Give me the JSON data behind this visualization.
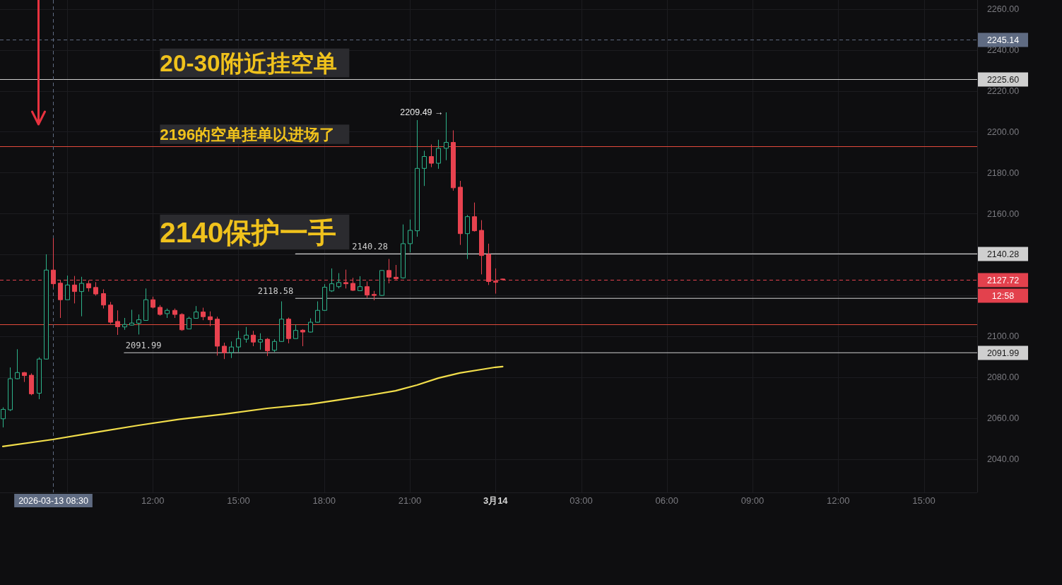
{
  "chart_data": {
    "type": "candlestick",
    "x": [
      "2026-03-13T06:45",
      "2026-03-13T07:00",
      "2026-03-13T07:15",
      "2026-03-13T07:30",
      "2026-03-13T07:45",
      "2026-03-13T08:00",
      "2026-03-13T08:15",
      "2026-03-13T08:30",
      "2026-03-13T08:45",
      "2026-03-13T09:00",
      "2026-03-13T09:15",
      "2026-03-13T09:30",
      "2026-03-13T09:45",
      "2026-03-13T10:00",
      "2026-03-13T10:15",
      "2026-03-13T10:30",
      "2026-03-13T10:45",
      "2026-03-13T11:00",
      "2026-03-13T11:15",
      "2026-03-13T11:30",
      "2026-03-13T11:45",
      "2026-03-13T12:00",
      "2026-03-13T12:15",
      "2026-03-13T12:30",
      "2026-03-13T12:45",
      "2026-03-13T13:00",
      "2026-03-13T13:15",
      "2026-03-13T13:30",
      "2026-03-13T13:45",
      "2026-03-13T14:00",
      "2026-03-13T14:15",
      "2026-03-13T14:30",
      "2026-03-13T14:45",
      "2026-03-13T15:00",
      "2026-03-13T15:15",
      "2026-03-13T15:30",
      "2026-03-13T15:45",
      "2026-03-13T16:00",
      "2026-03-13T16:15",
      "2026-03-13T16:30",
      "2026-03-13T16:45",
      "2026-03-13T17:00",
      "2026-03-13T17:15",
      "2026-03-13T17:30",
      "2026-03-13T17:45",
      "2026-03-13T18:00",
      "2026-03-13T18:15",
      "2026-03-13T18:30",
      "2026-03-13T18:45",
      "2026-03-13T19:00",
      "2026-03-13T19:15",
      "2026-03-13T19:30",
      "2026-03-13T19:45",
      "2026-03-13T20:00",
      "2026-03-13T20:15",
      "2026-03-13T20:30",
      "2026-03-13T20:45",
      "2026-03-13T21:00",
      "2026-03-13T21:15",
      "2026-03-13T21:30",
      "2026-03-13T21:45",
      "2026-03-13T22:00",
      "2026-03-13T22:15",
      "2026-03-13T22:30",
      "2026-03-13T22:45",
      "2026-03-13T23:00",
      "2026-03-13T23:15",
      "2026-03-13T23:30",
      "2026-03-13T23:45",
      "2026-03-14T00:00",
      "2026-03-14T00:15"
    ],
    "ohlc": [
      [
        2059.7,
        2065.3,
        2055.5,
        2064.3
      ],
      [
        2064.1,
        2084.8,
        2063.5,
        2079.3
      ],
      [
        2079.3,
        2093.7,
        2079.0,
        2082.3
      ],
      [
        2082.3,
        2082.6,
        2077.7,
        2080.8
      ],
      [
        2081.0,
        2081.9,
        2071.2,
        2071.9
      ],
      [
        2072.2,
        2089.8,
        2069.3,
        2088.9
      ],
      [
        2088.9,
        2140.1,
        2088.7,
        2132.4
      ],
      [
        2132.4,
        2148.0,
        2123.7,
        2125.7
      ],
      [
        2126.0,
        2127.6,
        2109.0,
        2117.9
      ],
      [
        2117.9,
        2129.7,
        2117.9,
        2125.1
      ],
      [
        2125.1,
        2129.5,
        2116.1,
        2121.9
      ],
      [
        2121.9,
        2129.1,
        2109.8,
        2125.9
      ],
      [
        2125.8,
        2127.4,
        2121.9,
        2123.7
      ],
      [
        2123.9,
        2126.5,
        2119.9,
        2120.7
      ],
      [
        2120.9,
        2123.0,
        2113.6,
        2115.3
      ],
      [
        2115.3,
        2116.8,
        2106.1,
        2106.9
      ],
      [
        2107.3,
        2112.7,
        2100.7,
        2104.7
      ],
      [
        2104.6,
        2109.0,
        2103.2,
        2105.8
      ],
      [
        2105.5,
        2113.0,
        2105.3,
        2106.5
      ],
      [
        2106.4,
        2110.7,
        2100.9,
        2108.1
      ],
      [
        2107.8,
        2123.4,
        2107.8,
        2117.9
      ],
      [
        2117.9,
        2119.4,
        2113.6,
        2114.2
      ],
      [
        2114.2,
        2115.3,
        2110.1,
        2110.7
      ],
      [
        2111.1,
        2113.6,
        2109.0,
        2112.7
      ],
      [
        2112.7,
        2113.6,
        2109.0,
        2110.7
      ],
      [
        2110.7,
        2111.3,
        2102.7,
        2103.2
      ],
      [
        2103.6,
        2109.6,
        2103.5,
        2108.8
      ],
      [
        2108.8,
        2114.8,
        2108.8,
        2111.9
      ],
      [
        2111.9,
        2114.0,
        2107.9,
        2109.6
      ],
      [
        2109.6,
        2112.2,
        2105.0,
        2108.1
      ],
      [
        2108.4,
        2109.6,
        2090.6,
        2095.2
      ],
      [
        2095.2,
        2096.9,
        2088.9,
        2092.0
      ],
      [
        2092.1,
        2097.5,
        2089.4,
        2094.8
      ],
      [
        2094.8,
        2102.7,
        2092.3,
        2098.9
      ],
      [
        2098.6,
        2104.6,
        2096.9,
        2100.6
      ],
      [
        2100.6,
        2102.7,
        2095.2,
        2097.2
      ],
      [
        2097.2,
        2101.5,
        2093.5,
        2098.4
      ],
      [
        2098.6,
        2099.2,
        2090.4,
        2092.9
      ],
      [
        2093.2,
        2098.6,
        2092.3,
        2097.5
      ],
      [
        2097.5,
        2117.1,
        2097.3,
        2108.4
      ],
      [
        2108.4,
        2109.2,
        2096.6,
        2098.9
      ],
      [
        2098.9,
        2105.8,
        2098.9,
        2102.9
      ],
      [
        2103.0,
        2103.5,
        2095.2,
        2102.1
      ],
      [
        2102.1,
        2108.8,
        2101.9,
        2106.9
      ],
      [
        2106.9,
        2117.1,
        2106.7,
        2112.7
      ],
      [
        2112.7,
        2125.5,
        2112.4,
        2124.0
      ],
      [
        2122.2,
        2133.2,
        2121.7,
        2125.7
      ],
      [
        2124.3,
        2130.9,
        2123.4,
        2126.3
      ],
      [
        2126.3,
        2132.6,
        2123.4,
        2125.7
      ],
      [
        2125.9,
        2128.6,
        2122.2,
        2122.5
      ],
      [
        2122.3,
        2129.4,
        2122.2,
        2124.3
      ],
      [
        2124.3,
        2126.8,
        2118.8,
        2120.2
      ],
      [
        2120.5,
        2122.2,
        2117.6,
        2120.0
      ],
      [
        2120.0,
        2132.3,
        2119.7,
        2132.2
      ],
      [
        2132.2,
        2137.8,
        2125.9,
        2128.9
      ],
      [
        2128.9,
        2134.9,
        2127.7,
        2128.2
      ],
      [
        2128.6,
        2154.7,
        2128.2,
        2145.3
      ],
      [
        2145.3,
        2157.1,
        2141.0,
        2151.8
      ],
      [
        2151.6,
        2205.7,
        2148.7,
        2182.1
      ],
      [
        2182.1,
        2190.7,
        2173.5,
        2187.9
      ],
      [
        2187.9,
        2193.8,
        2182.7,
        2184.6
      ],
      [
        2184.6,
        2196.1,
        2181.9,
        2191.9
      ],
      [
        2191.9,
        2209.49,
        2186.1,
        2194.8
      ],
      [
        2194.8,
        2200.7,
        2171.2,
        2172.6
      ],
      [
        2172.9,
        2176.0,
        2144.7,
        2150.2
      ],
      [
        2150.2,
        2159.3,
        2137.8,
        2158.5
      ],
      [
        2158.5,
        2165.4,
        2151.2,
        2151.6
      ],
      [
        2151.8,
        2156.8,
        2130.3,
        2139.5
      ],
      [
        2140.1,
        2145.3,
        2125.1,
        2126.8
      ],
      [
        2127.0,
        2133.2,
        2120.9,
        2126.4
      ],
      [
        2128.0,
        2128.2,
        2127.5,
        2127.72
      ]
    ],
    "series": [
      {
        "type": "line",
        "color": "#f2de4b",
        "x": [
          "2026-03-13T06:45",
          "2026-03-13T08:30",
          "2026-03-13T10:00",
          "2026-03-13T11:30",
          "2026-03-13T13:00",
          "2026-03-13T14:30",
          "2026-03-13T16:00",
          "2026-03-13T17:30",
          "2026-03-13T18:30",
          "2026-03-13T19:30",
          "2026-03-13T20:30",
          "2026-03-13T21:15",
          "2026-03-13T22:00",
          "2026-03-13T22:45",
          "2026-03-13T23:30",
          "2026-03-14T00:00",
          "2026-03-14T00:15"
        ],
        "values": [
          2046.2,
          2049.6,
          2053.1,
          2056.5,
          2059.6,
          2062.0,
          2064.8,
          2066.8,
          2068.9,
          2071.0,
          2073.4,
          2076.2,
          2079.6,
          2082.1,
          2083.8,
          2084.9,
          2085.2
        ]
      },
      {
        "type": "line",
        "name": "2140.28",
        "color": "#cfcfcf",
        "x": [
          "2026-03-13T17:00",
          "2026-03-14T16:52"
        ],
        "values": [
          2140.28,
          2140.28
        ]
      },
      {
        "type": "line",
        "name": "2118.58",
        "color": "#cfcfcf",
        "x": [
          "2026-03-13T17:00",
          "2026-03-14T16:52"
        ],
        "values": [
          2118.58,
          2118.58
        ]
      },
      {
        "type": "line",
        "name": "2091.99",
        "color": "#cfcfcf",
        "x": [
          "2026-03-13T11:00",
          "2026-03-14T16:52"
        ],
        "values": [
          2091.99,
          2091.99
        ]
      }
    ],
    "ref_lines": [
      {
        "axis": "y",
        "value": 2245.14,
        "label": "2245.14",
        "color": "#5f6b82",
        "line_style": "dashed"
      },
      {
        "axis": "y",
        "value": 2225.6,
        "label": "2225.60",
        "color": "#cfcfcf"
      },
      {
        "axis": "y",
        "value": 2193,
        "color": "#e2493b"
      },
      {
        "axis": "y",
        "value": 2127.72,
        "label": "2127.72\n12:58",
        "color": "#e3414d",
        "line_style": "dashed"
      },
      {
        "axis": "y",
        "value": 2106,
        "color": "#e2493b"
      },
      {
        "axis": "x",
        "value": "2026-03-13T08:30",
        "label": "2026-03-13 08:30",
        "color": "#5f6b82",
        "line_style": "dashed"
      }
    ],
    "annotations": [
      {
        "text": "20-30附近挂空单",
        "x": "2026-03-13T12:15",
        "y": 2225.6
      },
      {
        "text": "2196的空单挂单以进场了",
        "x": "2026-03-13T12:15",
        "y": 2193
      },
      "2140保护一手",
      {
        "text": "2209.49 →",
        "x": "2026-03-13T22:15",
        "y": 2209.49
      }
    ],
    "xlim": [
      "2026-03-13T06:39",
      "2026-03-14T16:52"
    ],
    "xticks": [
      {
        "value": "2026-03-13T09:00",
        "label": null
      },
      {
        "value": "2026-03-13T12:00",
        "label": "12:00"
      },
      {
        "value": "2026-03-13T15:00",
        "label": "15:00"
      },
      {
        "value": "2026-03-13T18:00",
        "label": "18:00"
      },
      {
        "value": "2026-03-13T21:00",
        "label": "21:00"
      },
      {
        "value": "2026-03-14T00:00",
        "label": "3月14"
      },
      {
        "value": "2026-03-14T03:00",
        "label": "03:00"
      },
      {
        "value": "2026-03-14T06:00",
        "label": "06:00"
      },
      {
        "value": "2026-03-14T09:00",
        "label": "09:00"
      },
      {
        "value": "2026-03-14T12:00",
        "label": "12:00"
      },
      {
        "value": "2026-03-14T15:00",
        "label": "15:00"
      }
    ],
    "ylim": [
      2023.7,
      2264.4
    ],
    "yticks": [
      {
        "value": 2040,
        "label": "2040.00"
      },
      {
        "value": 2060,
        "label": "2060.00"
      },
      {
        "value": 2080,
        "label": "2080.00"
      },
      {
        "value": 2100,
        "label": "2100.00"
      },
      {
        "value": 2120,
        "label": null
      },
      {
        "value": 2140,
        "label": null
      },
      {
        "value": 2160,
        "label": "2160.00"
      },
      {
        "value": 2180,
        "label": "2180.00"
      },
      {
        "value": 2200,
        "label": "2200.00"
      },
      {
        "value": 2220,
        "label": "2220.00"
      },
      {
        "value": 2240,
        "label": "2240.00"
      },
      {
        "value": 2260,
        "label": "2260.00"
      }
    ],
    "grid": true
  }
}
